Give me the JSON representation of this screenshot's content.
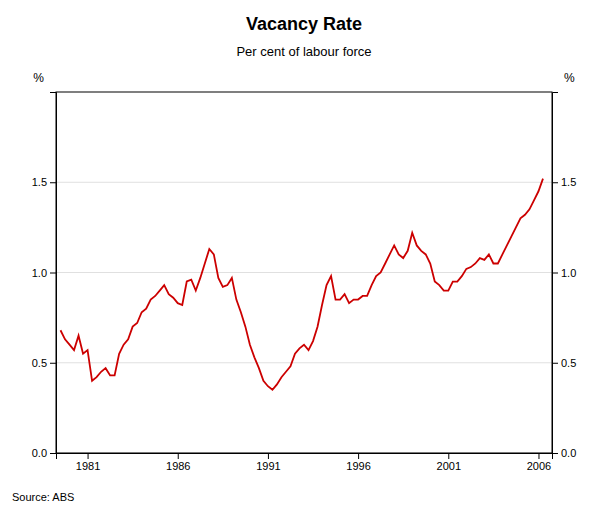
{
  "chart_data": {
    "type": "line",
    "title": "Vacancy Rate",
    "subtitle": "Per cent of labour force",
    "y_label": "%",
    "y2_label": "%",
    "source": "Source: ABS",
    "color": "#cc0000",
    "grid": true,
    "xlim": [
      1979.25,
      2006.75
    ],
    "xticks": [
      1981,
      1986,
      1991,
      1996,
      2001,
      2006
    ],
    "ylim": [
      0.0,
      2.0
    ],
    "yticks": [
      {
        "value": 0.0,
        "label": "0.0"
      },
      0.5,
      {
        "value": 1.0,
        "label": "1.0"
      },
      1.5
    ],
    "y2lim": [
      0.0,
      2.0
    ],
    "y2ticks": [
      {
        "value": 0.0,
        "label": "0.0"
      },
      0.5,
      {
        "value": 1.0,
        "label": "1.0"
      },
      1.5
    ],
    "x": [
      1979.5,
      1979.75,
      1980.0,
      1980.25,
      1980.5,
      1980.75,
      1981.0,
      1981.25,
      1981.5,
      1981.75,
      1982.0,
      1982.25,
      1982.5,
      1982.75,
      1983.0,
      1983.25,
      1983.5,
      1983.75,
      1984.0,
      1984.25,
      1984.5,
      1984.75,
      1985.0,
      1985.25,
      1985.5,
      1985.75,
      1986.0,
      1986.25,
      1986.5,
      1986.75,
      1987.0,
      1987.25,
      1987.5,
      1987.75,
      1988.0,
      1988.25,
      1988.5,
      1988.75,
      1989.0,
      1989.25,
      1989.5,
      1989.75,
      1990.0,
      1990.25,
      1990.5,
      1990.75,
      1991.0,
      1991.25,
      1991.5,
      1991.75,
      1992.0,
      1992.25,
      1992.5,
      1992.75,
      1993.0,
      1993.25,
      1993.5,
      1993.75,
      1994.0,
      1994.25,
      1994.5,
      1994.75,
      1995.0,
      1995.25,
      1995.5,
      1995.75,
      1996.0,
      1996.25,
      1996.5,
      1996.75,
      1997.0,
      1997.25,
      1997.5,
      1997.75,
      1998.0,
      1998.25,
      1998.5,
      1998.75,
      1999.0,
      1999.25,
      1999.5,
      1999.75,
      2000.0,
      2000.25,
      2000.5,
      2000.75,
      2001.0,
      2001.25,
      2001.5,
      2001.75,
      2002.0,
      2002.25,
      2002.5,
      2002.75,
      2003.0,
      2003.25,
      2003.5,
      2003.75,
      2004.0,
      2004.25,
      2004.5,
      2004.75,
      2005.0,
      2005.25,
      2005.5,
      2005.75,
      2006.0,
      2006.25
    ],
    "values": [
      0.68,
      0.63,
      0.6,
      0.57,
      0.65,
      0.55,
      0.57,
      0.4,
      0.42,
      0.45,
      0.47,
      0.43,
      0.43,
      0.55,
      0.6,
      0.63,
      0.7,
      0.72,
      0.78,
      0.8,
      0.85,
      0.87,
      0.9,
      0.93,
      0.88,
      0.86,
      0.83,
      0.82,
      0.95,
      0.96,
      0.9,
      0.97,
      1.05,
      1.13,
      1.1,
      0.97,
      0.92,
      0.93,
      0.97,
      0.85,
      0.78,
      0.7,
      0.6,
      0.53,
      0.47,
      0.4,
      0.37,
      0.35,
      0.38,
      0.42,
      0.45,
      0.48,
      0.55,
      0.58,
      0.6,
      0.57,
      0.62,
      0.7,
      0.82,
      0.93,
      0.98,
      0.85,
      0.85,
      0.88,
      0.83,
      0.85,
      0.85,
      0.87,
      0.87,
      0.93,
      0.98,
      1.0,
      1.05,
      1.1,
      1.15,
      1.1,
      1.08,
      1.12,
      1.22,
      1.15,
      1.12,
      1.1,
      1.05,
      0.95,
      0.93,
      0.9,
      0.9,
      0.95,
      0.95,
      0.98,
      1.02,
      1.03,
      1.05,
      1.08,
      1.07,
      1.1,
      1.05,
      1.05,
      1.1,
      1.15,
      1.2,
      1.25,
      1.3,
      1.32,
      1.35,
      1.4,
      1.45,
      1.52
    ]
  }
}
